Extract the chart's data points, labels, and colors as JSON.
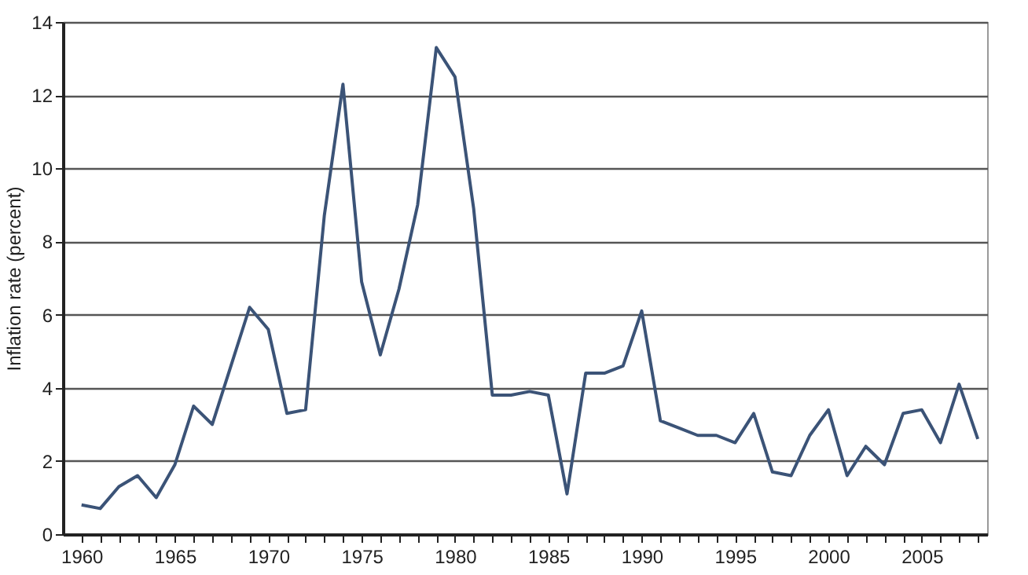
{
  "chart_data": {
    "type": "line",
    "ylabel": "Inflation rate (percent)",
    "x": [
      1960,
      1961,
      1962,
      1963,
      1964,
      1965,
      1966,
      1967,
      1968,
      1969,
      1970,
      1971,
      1972,
      1973,
      1974,
      1975,
      1976,
      1977,
      1978,
      1979,
      1980,
      1981,
      1982,
      1983,
      1984,
      1985,
      1986,
      1987,
      1988,
      1989,
      1990,
      1991,
      1992,
      1993,
      1994,
      1995,
      1996,
      1997,
      1998,
      1999,
      2000,
      2001,
      2002,
      2003,
      2004,
      2005,
      2006,
      2007,
      2008
    ],
    "series": [
      {
        "color": "#3b5377",
        "values": [
          0.8,
          0.7,
          1.3,
          1.6,
          1.0,
          1.9,
          3.5,
          3.0,
          4.6,
          6.2,
          5.6,
          3.3,
          3.4,
          8.7,
          12.3,
          6.9,
          4.9,
          6.7,
          9.0,
          13.3,
          12.5,
          8.9,
          3.8,
          3.8,
          3.9,
          3.8,
          1.1,
          4.4,
          4.4,
          4.6,
          6.1,
          3.1,
          2.9,
          2.7,
          2.7,
          2.5,
          3.3,
          1.7,
          1.6,
          2.7,
          3.4,
          1.6,
          2.4,
          1.9,
          3.3,
          3.4,
          2.5,
          4.1,
          2.6
        ]
      }
    ],
    "xlim": [
      1959,
      2008.5
    ],
    "xticks": [
      1960,
      {
        "value": 1961,
        "label": null
      },
      {
        "value": 1962,
        "label": null
      },
      {
        "value": 1963,
        "label": null
      },
      {
        "value": 1964,
        "label": null
      },
      1965,
      {
        "value": 1966,
        "label": null
      },
      {
        "value": 1967,
        "label": null
      },
      {
        "value": 1968,
        "label": null
      },
      {
        "value": 1969,
        "label": null
      },
      1970,
      {
        "value": 1971,
        "label": null
      },
      {
        "value": 1972,
        "label": null
      },
      {
        "value": 1973,
        "label": null
      },
      {
        "value": 1974,
        "label": null
      },
      1975,
      {
        "value": 1976,
        "label": null
      },
      {
        "value": 1977,
        "label": null
      },
      {
        "value": 1978,
        "label": null
      },
      {
        "value": 1979,
        "label": null
      },
      1980,
      {
        "value": 1981,
        "label": null
      },
      {
        "value": 1982,
        "label": null
      },
      {
        "value": 1983,
        "label": null
      },
      {
        "value": 1984,
        "label": null
      },
      1985,
      {
        "value": 1986,
        "label": null
      },
      {
        "value": 1987,
        "label": null
      },
      {
        "value": 1988,
        "label": null
      },
      {
        "value": 1989,
        "label": null
      },
      1990,
      {
        "value": 1991,
        "label": null
      },
      {
        "value": 1992,
        "label": null
      },
      {
        "value": 1993,
        "label": null
      },
      {
        "value": 1994,
        "label": null
      },
      1995,
      {
        "value": 1996,
        "label": null
      },
      {
        "value": 1997,
        "label": null
      },
      {
        "value": 1998,
        "label": null
      },
      {
        "value": 1999,
        "label": null
      },
      2000,
      {
        "value": 2001,
        "label": null
      },
      {
        "value": 2002,
        "label": null
      },
      {
        "value": 2003,
        "label": null
      },
      {
        "value": 2004,
        "label": null
      },
      2005,
      {
        "value": 2006,
        "label": null
      },
      {
        "value": 2007,
        "label": null
      },
      {
        "value": 2008,
        "label": null
      }
    ],
    "ylim": [
      0,
      14
    ],
    "yticks": [
      0,
      2,
      4,
      6,
      8,
      10,
      12,
      14
    ],
    "grid": "y",
    "legend": false,
    "line_style": "solid"
  }
}
